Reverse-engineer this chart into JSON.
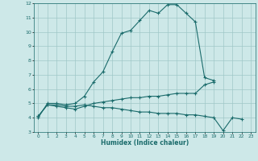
{
  "xlabel": "Humidex (Indice chaleur)",
  "x_values": [
    0,
    1,
    2,
    3,
    4,
    5,
    6,
    7,
    8,
    9,
    10,
    11,
    12,
    13,
    14,
    15,
    16,
    17,
    18,
    19,
    20,
    21,
    22,
    23
  ],
  "line1": [
    4.0,
    5.0,
    5.0,
    4.9,
    5.0,
    5.5,
    6.5,
    7.2,
    8.6,
    9.9,
    10.1,
    10.8,
    11.5,
    11.3,
    11.9,
    11.9,
    11.3,
    10.7,
    6.8,
    6.6,
    null,
    null,
    null,
    null
  ],
  "line2": [
    4.1,
    4.9,
    4.9,
    4.8,
    4.8,
    4.9,
    4.8,
    4.7,
    4.7,
    4.6,
    4.5,
    4.4,
    4.4,
    4.3,
    4.3,
    4.3,
    4.2,
    4.2,
    4.1,
    4.0,
    3.1,
    4.0,
    3.9,
    null
  ],
  "line3": [
    4.1,
    4.9,
    4.8,
    4.7,
    4.6,
    4.8,
    5.0,
    5.1,
    5.2,
    5.3,
    5.4,
    5.4,
    5.5,
    5.5,
    5.6,
    5.7,
    5.7,
    5.7,
    6.3,
    6.5,
    null,
    null,
    null,
    null
  ],
  "line_color": "#1a6b6b",
  "bg_color": "#cde8e8",
  "grid_color": "#a0c8c8",
  "ylim": [
    3,
    12
  ],
  "xlim": [
    -0.5,
    23.5
  ],
  "yticks": [
    3,
    4,
    5,
    6,
    7,
    8,
    9,
    10,
    11,
    12
  ],
  "xticks": [
    0,
    1,
    2,
    3,
    4,
    5,
    6,
    7,
    8,
    9,
    10,
    11,
    12,
    13,
    14,
    15,
    16,
    17,
    18,
    19,
    20,
    21,
    22,
    23
  ]
}
